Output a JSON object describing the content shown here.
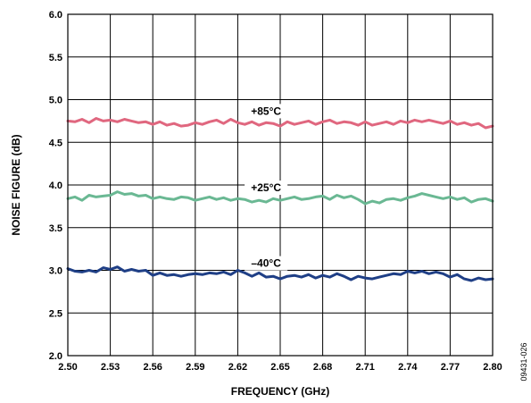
{
  "chart_data": {
    "type": "line",
    "title": "",
    "xlabel": "FREQUENCY (GHz)",
    "ylabel": "NOISE FIGURE (dB)",
    "xlim": [
      2.5,
      2.8
    ],
    "ylim": [
      2.0,
      6.0
    ],
    "x_ticks": [
      "2.50",
      "2.53",
      "2.56",
      "2.59",
      "2.62",
      "2.65",
      "2.68",
      "2.71",
      "2.74",
      "2.77",
      "2.80"
    ],
    "y_ticks": [
      "2.0",
      "2.5",
      "3.0",
      "3.5",
      "4.0",
      "4.5",
      "5.0",
      "5.5",
      "6.0"
    ],
    "grid": true,
    "x": [
      2.5,
      2.505,
      2.51,
      2.515,
      2.52,
      2.525,
      2.53,
      2.535,
      2.54,
      2.545,
      2.55,
      2.555,
      2.56,
      2.565,
      2.57,
      2.575,
      2.58,
      2.585,
      2.59,
      2.595,
      2.6,
      2.605,
      2.61,
      2.615,
      2.62,
      2.625,
      2.63,
      2.635,
      2.64,
      2.645,
      2.65,
      2.655,
      2.66,
      2.665,
      2.67,
      2.675,
      2.68,
      2.685,
      2.69,
      2.695,
      2.7,
      2.705,
      2.71,
      2.715,
      2.72,
      2.725,
      2.73,
      2.735,
      2.74,
      2.745,
      2.75,
      2.755,
      2.76,
      2.765,
      2.77,
      2.775,
      2.78,
      2.785,
      2.79,
      2.795,
      2.8
    ],
    "series": [
      {
        "name": "+85°C",
        "color": "#e0677f",
        "values": [
          4.75,
          4.74,
          4.77,
          4.73,
          4.78,
          4.75,
          4.76,
          4.74,
          4.77,
          4.75,
          4.73,
          4.74,
          4.71,
          4.74,
          4.7,
          4.72,
          4.69,
          4.7,
          4.73,
          4.71,
          4.74,
          4.76,
          4.72,
          4.77,
          4.73,
          4.71,
          4.74,
          4.7,
          4.73,
          4.72,
          4.69,
          4.74,
          4.71,
          4.73,
          4.75,
          4.71,
          4.74,
          4.76,
          4.72,
          4.74,
          4.73,
          4.7,
          4.74,
          4.7,
          4.72,
          4.74,
          4.71,
          4.75,
          4.73,
          4.76,
          4.74,
          4.76,
          4.74,
          4.72,
          4.75,
          4.71,
          4.73,
          4.7,
          4.72,
          4.67,
          4.69
        ]
      },
      {
        "name": "+25°C",
        "color": "#6ab893",
        "values": [
          3.84,
          3.86,
          3.82,
          3.88,
          3.86,
          3.87,
          3.88,
          3.92,
          3.89,
          3.9,
          3.87,
          3.88,
          3.84,
          3.86,
          3.84,
          3.83,
          3.86,
          3.85,
          3.82,
          3.84,
          3.86,
          3.83,
          3.85,
          3.82,
          3.84,
          3.83,
          3.8,
          3.82,
          3.8,
          3.84,
          3.82,
          3.84,
          3.86,
          3.83,
          3.84,
          3.86,
          3.87,
          3.83,
          3.88,
          3.85,
          3.87,
          3.83,
          3.78,
          3.81,
          3.79,
          3.83,
          3.84,
          3.82,
          3.85,
          3.87,
          3.9,
          3.88,
          3.86,
          3.84,
          3.86,
          3.83,
          3.85,
          3.8,
          3.83,
          3.84,
          3.81
        ]
      },
      {
        "name": "–40°C",
        "color": "#1f3f86",
        "values": [
          3.02,
          2.99,
          2.98,
          3.0,
          2.98,
          3.03,
          3.01,
          3.04,
          2.99,
          3.01,
          2.99,
          3.0,
          2.94,
          2.97,
          2.94,
          2.95,
          2.93,
          2.95,
          2.96,
          2.95,
          2.97,
          2.96,
          2.98,
          2.95,
          3.0,
          2.97,
          2.93,
          2.97,
          2.92,
          2.93,
          2.9,
          2.93,
          2.94,
          2.92,
          2.95,
          2.91,
          2.94,
          2.92,
          2.96,
          2.93,
          2.89,
          2.93,
          2.91,
          2.9,
          2.92,
          2.94,
          2.96,
          2.95,
          2.99,
          2.97,
          2.99,
          2.96,
          2.98,
          2.96,
          2.92,
          2.95,
          2.9,
          2.88,
          2.91,
          2.89,
          2.9
        ]
      }
    ],
    "annotations": [
      "+85°C",
      "+25°C",
      "–40°C"
    ],
    "figure_id": "09431-026"
  }
}
